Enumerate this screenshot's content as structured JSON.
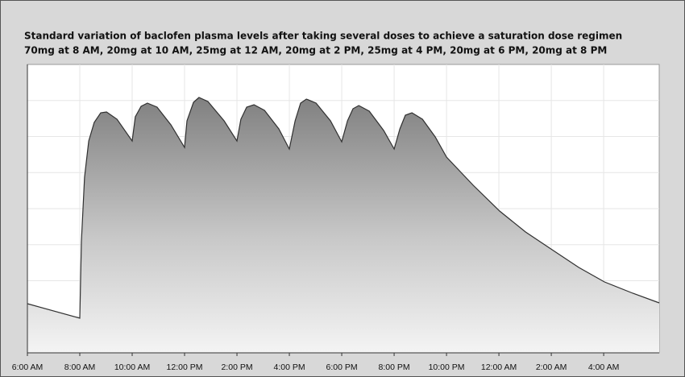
{
  "chart_data": {
    "type": "area",
    "title": "Standard variation of baclofen plasma levels after taking several doses to achieve a saturation dose regimen",
    "subtitle": "70mg at 8 AM, 20mg at 10 AM, 25mg  at 12 AM, 20mg at 2 PM, 25mg at 4 PM, 20mg at 6 PM, 20mg at 8 PM",
    "x": [
      6.0,
      8.0,
      8.06,
      8.18,
      8.34,
      8.55,
      8.8,
      9.02,
      9.42,
      10.0,
      10.12,
      10.34,
      10.58,
      10.95,
      11.48,
      12.0,
      12.09,
      12.34,
      12.55,
      12.89,
      13.51,
      14.0,
      14.15,
      14.37,
      14.65,
      15.05,
      15.6,
      16.0,
      16.22,
      16.43,
      16.65,
      17.02,
      17.57,
      18.0,
      18.22,
      18.43,
      18.65,
      19.05,
      19.6,
      20.0,
      20.22,
      20.43,
      20.68,
      21.08,
      21.57,
      22.0,
      23.02,
      24.03,
      25.02,
      26.03,
      27.05,
      28.03,
      29.11,
      30.12
    ],
    "values": [
      13.63,
      9.61,
      30.84,
      48.72,
      58.77,
      63.91,
      66.59,
      66.82,
      64.8,
      58.77,
      65.47,
      68.38,
      69.27,
      68.16,
      63.24,
      56.98,
      64.36,
      69.5,
      70.84,
      69.72,
      64.36,
      58.77,
      64.8,
      68.16,
      68.83,
      67.26,
      62.12,
      56.54,
      64.36,
      69.27,
      70.39,
      69.27,
      64.36,
      58.55,
      64.36,
      67.71,
      68.6,
      67.04,
      61.68,
      56.54,
      62.12,
      65.92,
      66.59,
      64.8,
      59.89,
      54.3,
      46.48,
      39.33,
      33.52,
      28.6,
      23.69,
      19.66,
      16.54,
      13.85
    ],
    "color": "#303030",
    "xlim": [
      6,
      30.12
    ],
    "ylim": [
      0,
      80
    ],
    "xticks": [
      {
        "value": 6,
        "label": "6:00 AM"
      },
      {
        "value": 8,
        "label": "8:00 AM"
      },
      {
        "value": 10,
        "label": "10:00 AM"
      },
      {
        "value": 12,
        "label": "12:00 PM"
      },
      {
        "value": 14,
        "label": "2:00 PM"
      },
      {
        "value": 16,
        "label": "4:00 PM"
      },
      {
        "value": 18,
        "label": "6:00 PM"
      },
      {
        "value": 20,
        "label": "8:00 PM"
      },
      {
        "value": 22,
        "label": "10:00 PM"
      },
      {
        "value": 24,
        "label": "12:00 AM"
      },
      {
        "value": 26,
        "label": "2:00 AM"
      },
      {
        "value": 28,
        "label": "4:00 AM"
      }
    ],
    "ygrid": [
      10,
      20,
      30,
      40,
      50,
      60,
      70
    ],
    "grid": true
  }
}
